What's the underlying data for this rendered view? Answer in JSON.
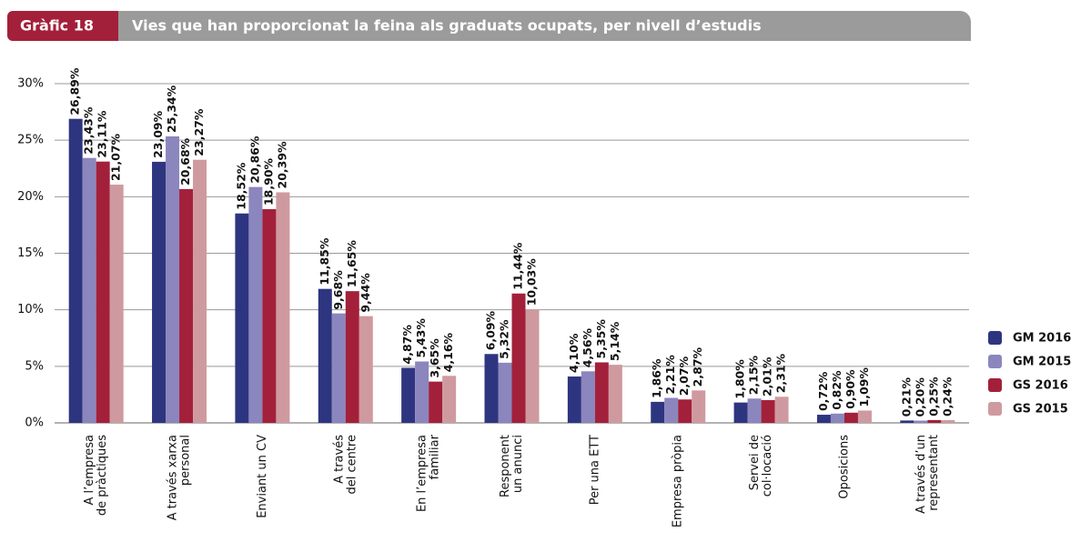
{
  "header": {
    "tag": "Gràfic 18"
  },
  "chart_data": {
    "type": "bar",
    "title": "Vies que han proporcionat la feina als graduats ocupats, per nivell d’estudis",
    "categories": [
      [
        "A l’empresa",
        "de pràctiques"
      ],
      [
        "A través xarxa",
        "personal"
      ],
      [
        "Enviant un CV"
      ],
      [
        "A través",
        "del centre"
      ],
      [
        "En l’empresa",
        "familiar"
      ],
      [
        "Responent",
        "un anunci"
      ],
      [
        "Per una ETT"
      ],
      [
        "Empresa pròpia"
      ],
      [
        "Servei de",
        "col·locació"
      ],
      [
        "Oposicions"
      ],
      [
        "A través d’un",
        "representant"
      ]
    ],
    "series": [
      {
        "name": "GM 2016",
        "color": "#2e3580",
        "values": [
          26.89,
          23.09,
          18.52,
          11.85,
          4.87,
          6.09,
          4.1,
          1.86,
          1.8,
          0.72,
          0.21
        ],
        "value_labels": [
          "26,89%",
          "23,09%",
          "18,52%",
          "11,85%",
          "4,87%",
          "6,09%",
          "4,10%",
          "1,86%",
          "1,80%",
          "0,72%",
          "0,21%"
        ]
      },
      {
        "name": "GM 2015",
        "color": "#8b86bd",
        "values": [
          23.43,
          25.34,
          20.86,
          9.68,
          5.43,
          5.32,
          4.56,
          2.21,
          2.15,
          0.82,
          0.2
        ],
        "value_labels": [
          "23,43%",
          "25,34%",
          "20,86%",
          "9,68%",
          "5,43%",
          "5,32%",
          "4,56%",
          "2,21%",
          "2,15%",
          "0,82%",
          "0,20%"
        ]
      },
      {
        "name": "GS 2016",
        "color": "#a3203a",
        "values": [
          23.11,
          20.68,
          18.9,
          11.65,
          3.65,
          11.44,
          5.35,
          2.07,
          2.01,
          0.9,
          0.25
        ],
        "value_labels": [
          "23,11%",
          "20,68%",
          "18,90%",
          "11,65%",
          "3,65%",
          "11,44%",
          "5,35%",
          "2,07%",
          "2,01%",
          "0,90%",
          "0,25%"
        ]
      },
      {
        "name": "GS 2015",
        "color": "#cf9a9f",
        "values": [
          21.07,
          23.27,
          20.39,
          9.44,
          4.16,
          10.03,
          5.14,
          2.87,
          2.31,
          1.09,
          0.24
        ],
        "value_labels": [
          "21,07%",
          "23,27%",
          "20,39%",
          "9,44%",
          "4,16%",
          "10,03%",
          "5,14%",
          "2,87%",
          "2,31%",
          "1,09%",
          "0,24%"
        ]
      }
    ],
    "ylim": [
      0,
      30
    ],
    "yticks": [
      {
        "value": 0,
        "label": "0%"
      },
      {
        "value": 5,
        "label": "5%"
      },
      {
        "value": 10,
        "label": "10%"
      },
      {
        "value": 15,
        "label": "15%"
      },
      {
        "value": 20,
        "label": "20%"
      },
      {
        "value": 25,
        "label": "25%"
      },
      {
        "value": 30,
        "label": "30%"
      }
    ],
    "grid": true,
    "legend": "right"
  }
}
